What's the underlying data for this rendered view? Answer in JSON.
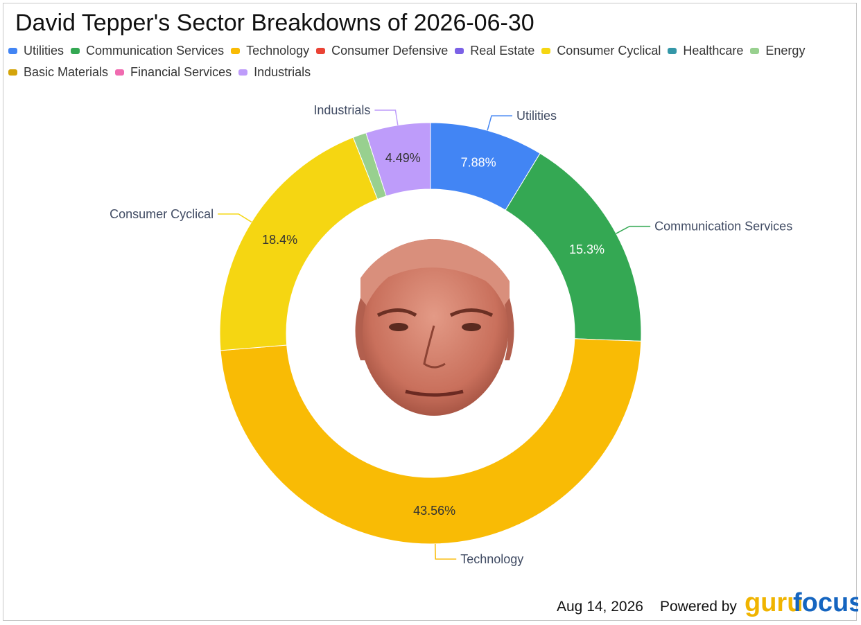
{
  "chart_data": {
    "type": "pie",
    "variant": "donut",
    "title": "David Tepper's Sector Breakdowns of 2026-06-30",
    "series": [
      {
        "name": "Utilities",
        "value": 7.88,
        "label": "7.88%",
        "color": "#4285f4",
        "label_color": "#ffffff"
      },
      {
        "name": "Communication Services",
        "value": 15.3,
        "label": "15.3%",
        "color": "#34a853",
        "label_color": "#ffffff"
      },
      {
        "name": "Technology",
        "value": 43.56,
        "label": "43.56%",
        "color": "#f9bb05",
        "label_color": "#333333"
      },
      {
        "name": "Consumer Defensive",
        "value": 0,
        "label": "",
        "color": "#ea4335",
        "label_color": "#333333"
      },
      {
        "name": "Real Estate",
        "value": 0,
        "label": "",
        "color": "#7b61e6",
        "label_color": "#333333"
      },
      {
        "name": "Consumer Cyclical",
        "value": 18.4,
        "label": "18.4%",
        "color": "#f5d612",
        "label_color": "#333333"
      },
      {
        "name": "Healthcare",
        "value": 0,
        "label": "",
        "color": "#3497a8",
        "label_color": "#333333"
      },
      {
        "name": "Energy",
        "value": 0.93,
        "label": "",
        "color": "#98d08f",
        "label_color": "#333333"
      },
      {
        "name": "Basic Materials",
        "value": 0,
        "label": "",
        "color": "#d4a40a",
        "label_color": "#333333"
      },
      {
        "name": "Financial Services",
        "value": 0,
        "label": "",
        "color": "#f06bb0",
        "label_color": "#333333"
      },
      {
        "name": "Industrials",
        "value": 4.49,
        "label": "4.49%",
        "color": "#be9cfa",
        "label_color": "#333333"
      }
    ],
    "callouts": [
      "Utilities",
      "Communication Services",
      "Technology",
      "Consumer Cyclical",
      "Industrials"
    ],
    "legend_position": "top-left"
  },
  "footer": {
    "date": "Aug 14, 2026",
    "powered_by": "Powered by",
    "brand_guru": "guru",
    "brand_focus": "focus"
  },
  "colors": {
    "brand_guru": "#f0b400",
    "brand_focus": "#1565c0",
    "callout_text": "#404b63"
  }
}
